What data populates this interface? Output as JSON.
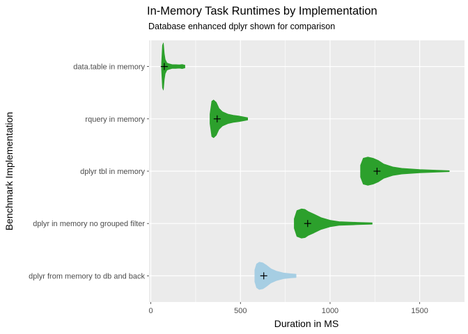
{
  "chart_data": {
    "type": "violin",
    "title": "In-Memory Task Runtimes by Implementation",
    "subtitle": "Database enhanced dplyr shown for comparison",
    "xlabel": "Duration in MS",
    "ylabel": "Benchmark Implementation",
    "xlim": [
      -10,
      1750
    ],
    "x_ticks": [
      0,
      500,
      1000,
      1500
    ],
    "grid": true,
    "orientation": "horizontal",
    "categories": [
      "data.table in memory",
      "rquery in memory",
      "dplyr tbl in memory",
      "dplyr in memory no grouped filter",
      "dplyr from memory to db and back"
    ],
    "series": [
      {
        "name": "data.table in memory",
        "color": "#2ca02c",
        "mean": 75,
        "min": 60,
        "max": 190,
        "profile": [
          [
            60,
            0.15
          ],
          [
            65,
            0.9
          ],
          [
            70,
            1.0
          ],
          [
            75,
            0.55
          ],
          [
            80,
            0.3
          ],
          [
            90,
            0.15
          ],
          [
            100,
            0.12
          ],
          [
            110,
            0.1
          ],
          [
            120,
            0.08
          ],
          [
            140,
            0.08
          ],
          [
            160,
            0.07
          ],
          [
            175,
            0.09
          ],
          [
            190,
            0.06
          ]
        ]
      },
      {
        "name": "rquery in memory",
        "color": "#2ca02c",
        "mean": 370,
        "min": 330,
        "max": 540,
        "profile": [
          [
            330,
            0.2
          ],
          [
            340,
            0.75
          ],
          [
            350,
            0.8
          ],
          [
            365,
            0.7
          ],
          [
            380,
            0.45
          ],
          [
            400,
            0.3
          ],
          [
            430,
            0.2
          ],
          [
            460,
            0.15
          ],
          [
            490,
            0.12
          ],
          [
            520,
            0.08
          ],
          [
            540,
            0.05
          ]
        ]
      },
      {
        "name": "dplyr tbl in memory",
        "color": "#2ca02c",
        "mean": 1262,
        "min": 1170,
        "max": 1665,
        "profile": [
          [
            1170,
            0.25
          ],
          [
            1185,
            0.55
          ],
          [
            1210,
            0.6
          ],
          [
            1240,
            0.55
          ],
          [
            1270,
            0.45
          ],
          [
            1300,
            0.3
          ],
          [
            1350,
            0.18
          ],
          [
            1400,
            0.12
          ],
          [
            1500,
            0.07
          ],
          [
            1600,
            0.04
          ],
          [
            1665,
            0.02
          ]
        ]
      },
      {
        "name": "dplyr in memory no grouped filter",
        "color": "#2ca02c",
        "mean": 875,
        "min": 800,
        "max": 1235,
        "profile": [
          [
            800,
            0.2
          ],
          [
            815,
            0.55
          ],
          [
            840,
            0.62
          ],
          [
            860,
            0.6
          ],
          [
            880,
            0.5
          ],
          [
            910,
            0.4
          ],
          [
            950,
            0.25
          ],
          [
            1000,
            0.14
          ],
          [
            1050,
            0.08
          ],
          [
            1150,
            0.05
          ],
          [
            1235,
            0.03
          ]
        ]
      },
      {
        "name": "dplyr from memory to db and back",
        "color": "#a6cee3",
        "mean": 630,
        "min": 580,
        "max": 810,
        "profile": [
          [
            580,
            0.25
          ],
          [
            590,
            0.5
          ],
          [
            605,
            0.58
          ],
          [
            625,
            0.55
          ],
          [
            645,
            0.45
          ],
          [
            670,
            0.3
          ],
          [
            700,
            0.2
          ],
          [
            740,
            0.12
          ],
          [
            780,
            0.09
          ],
          [
            810,
            0.07
          ]
        ]
      }
    ]
  }
}
